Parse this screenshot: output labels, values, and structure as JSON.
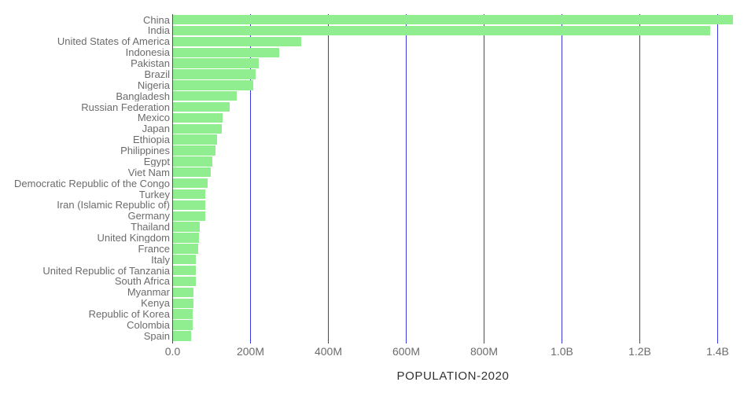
{
  "chart_data": {
    "type": "bar",
    "orientation": "horizontal",
    "title": "POPULATION-2020",
    "sort_order": "descending",
    "grid": "vertical",
    "legend": "none",
    "categories": [
      "China",
      "India",
      "United States of America",
      "Indonesia",
      "Pakistan",
      "Brazil",
      "Nigeria",
      "Bangladesh",
      "Russian Federation",
      "Mexico",
      "Japan",
      "Ethiopia",
      "Philippines",
      "Egypt",
      "Viet Nam",
      "Democratic Republic of the Congo",
      "Turkey",
      "Iran (Islamic Republic of)",
      "Germany",
      "Thailand",
      "United Kingdom",
      "France",
      "Italy",
      "United Republic of Tanzania",
      "South Africa",
      "Myanmar",
      "Kenya",
      "Republic of Korea",
      "Colombia",
      "Spain"
    ],
    "values_millions": [
      1439.3,
      1380.0,
      331.0,
      273.5,
      220.9,
      212.6,
      206.1,
      164.7,
      145.9,
      128.9,
      126.5,
      115.0,
      109.6,
      102.3,
      97.3,
      89.6,
      84.3,
      84.0,
      83.8,
      69.8,
      67.9,
      65.3,
      60.5,
      59.7,
      59.3,
      54.4,
      53.8,
      51.3,
      50.9,
      46.8
    ],
    "x_ticks": [
      {
        "label": "0.0",
        "value_millions": 0
      },
      {
        "label": "200M",
        "value_millions": 200
      },
      {
        "label": "400M",
        "value_millions": 400
      },
      {
        "label": "600M",
        "value_millions": 600
      },
      {
        "label": "800M",
        "value_millions": 800
      },
      {
        "label": "1.0B",
        "value_millions": 1000
      },
      {
        "label": "1.2B",
        "value_millions": 1200
      },
      {
        "label": "1.4B",
        "value_millions": 1400
      }
    ],
    "xlim_millions": [
      0,
      1495
    ],
    "colors": {
      "bar": "#90ee90",
      "grid": "#3a3ae2",
      "labels": "#6b6b6b",
      "title": "#323232",
      "background": "#ffffff"
    }
  }
}
